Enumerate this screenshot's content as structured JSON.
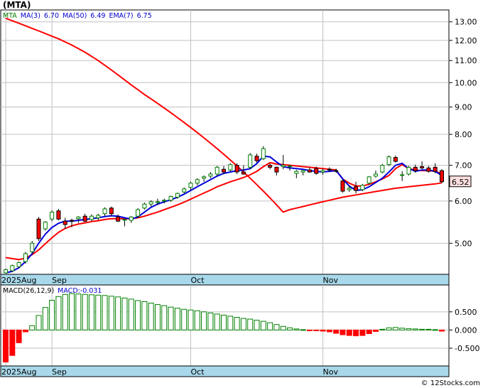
{
  "header": {
    "ticker": "(MTA)",
    "legend": [
      {
        "label": "MTA",
        "color": "#008000"
      },
      {
        "label": "MA(3)",
        "color": "#0000cc"
      },
      {
        "label": "6.70",
        "color": "#0000cc"
      },
      {
        "label": "MA(50)",
        "color": "#0000cc"
      },
      {
        "label": "6.49",
        "color": "#0000cc"
      },
      {
        "label": "EMA(7)",
        "color": "#0000cc"
      },
      {
        "label": "6.75",
        "color": "#0000cc"
      }
    ]
  },
  "macd_header": {
    "legend": [
      {
        "label": "MACD(26,12,9)",
        "color": "#000000"
      },
      {
        "label": "MACD:-0.031",
        "color": "#0000cc"
      }
    ]
  },
  "watermark": "© 12Stocks.com",
  "colors": {
    "up": "#008000",
    "down": "#ff0000",
    "ma_fast": "#0000dd",
    "ma_slow": "#ff0000",
    "band": "#a8d8ea",
    "grid": "#c0c0c0",
    "last_price_box": "#ffe0e0"
  },
  "chart_data": [
    {
      "type": "candlestick",
      "scale": "log",
      "ylim": [
        4.4,
        13.6
      ],
      "y_ticks": [
        5.0,
        6.0,
        7.0,
        8.0,
        9.0,
        10.0,
        11.0,
        12.0,
        13.0
      ],
      "y_tick_labels": [
        "5.00",
        "6.00",
        "7.00",
        "8.00",
        "9.00",
        "10.00",
        "11.00",
        "12.00",
        "13.00"
      ],
      "x_labels": [
        {
          "label": "2025Aug",
          "index": 0
        },
        {
          "label": "Sep",
          "index": 7
        },
        {
          "label": "Oct",
          "index": 28
        },
        {
          "label": "Nov",
          "index": 48
        }
      ],
      "last_price": 6.52,
      "last_price_label": "6.52",
      "ohlc": [
        [
          4.4,
          4.48,
          4.4,
          4.46
        ],
        [
          4.44,
          4.56,
          4.42,
          4.54
        ],
        [
          4.52,
          4.62,
          4.5,
          4.6
        ],
        [
          4.62,
          4.82,
          4.58,
          4.78
        ],
        [
          4.82,
          5.05,
          4.78,
          5.0
        ],
        [
          5.55,
          5.6,
          5.05,
          5.1
        ],
        [
          5.32,
          5.5,
          5.28,
          5.48
        ],
        [
          5.55,
          5.76,
          5.5,
          5.72
        ],
        [
          5.75,
          5.8,
          5.52,
          5.55
        ],
        [
          5.5,
          5.58,
          5.32,
          5.42
        ],
        [
          5.52,
          5.56,
          5.36,
          5.5
        ],
        [
          5.56,
          5.62,
          5.46,
          5.6
        ],
        [
          5.62,
          5.68,
          5.48,
          5.5
        ],
        [
          5.54,
          5.66,
          5.5,
          5.62
        ],
        [
          5.58,
          5.68,
          5.52,
          5.64
        ],
        [
          5.68,
          5.84,
          5.62,
          5.8
        ],
        [
          5.82,
          5.86,
          5.62,
          5.68
        ],
        [
          5.6,
          5.66,
          5.48,
          5.5
        ],
        [
          5.54,
          5.56,
          5.38,
          5.54
        ],
        [
          5.52,
          5.62,
          5.46,
          5.6
        ],
        [
          5.62,
          5.82,
          5.58,
          5.78
        ],
        [
          5.82,
          5.96,
          5.78,
          5.92
        ],
        [
          5.92,
          6.02,
          5.86,
          5.98
        ],
        [
          5.96,
          6.06,
          5.9,
          5.98
        ],
        [
          6.0,
          6.06,
          5.94,
          6.02
        ],
        [
          6.02,
          6.14,
          5.98,
          6.12
        ],
        [
          6.1,
          6.22,
          6.06,
          6.2
        ],
        [
          6.24,
          6.36,
          6.2,
          6.32
        ],
        [
          6.36,
          6.52,
          6.3,
          6.48
        ],
        [
          6.48,
          6.62,
          6.42,
          6.58
        ],
        [
          6.62,
          6.7,
          6.52,
          6.66
        ],
        [
          6.68,
          6.8,
          6.62,
          6.74
        ],
        [
          6.74,
          6.98,
          6.68,
          6.94
        ],
        [
          6.88,
          6.98,
          6.74,
          6.8
        ],
        [
          6.86,
          7.06,
          6.82,
          7.02
        ],
        [
          7.0,
          7.06,
          6.74,
          6.8
        ],
        [
          6.8,
          7.0,
          6.72,
          6.74
        ],
        [
          6.94,
          7.38,
          6.88,
          7.32
        ],
        [
          7.28,
          7.36,
          7.08,
          7.14
        ],
        [
          7.2,
          7.6,
          7.16,
          7.52
        ],
        [
          7.0,
          7.06,
          6.88,
          6.94
        ],
        [
          6.94,
          6.96,
          6.7,
          6.8
        ],
        [
          6.96,
          7.32,
          6.88,
          7.0
        ],
        [
          6.98,
          7.02,
          6.84,
          6.98
        ],
        [
          6.76,
          6.86,
          6.62,
          6.82
        ],
        [
          6.8,
          6.86,
          6.7,
          6.84
        ],
        [
          6.86,
          6.94,
          6.78,
          6.8
        ],
        [
          6.9,
          6.96,
          6.72,
          6.76
        ],
        [
          6.8,
          6.9,
          6.72,
          6.84
        ],
        [
          6.88,
          6.94,
          6.8,
          6.86
        ],
        [
          6.84,
          6.9,
          6.78,
          6.82
        ],
        [
          6.54,
          6.6,
          6.22,
          6.26
        ],
        [
          6.3,
          6.42,
          6.24,
          6.34
        ],
        [
          6.38,
          6.52,
          6.2,
          6.28
        ],
        [
          6.3,
          6.46,
          6.26,
          6.42
        ],
        [
          6.48,
          6.68,
          6.44,
          6.66
        ],
        [
          6.68,
          6.84,
          6.64,
          6.74
        ],
        [
          6.8,
          7.04,
          6.76,
          7.0
        ],
        [
          7.02,
          7.3,
          6.98,
          7.26
        ],
        [
          7.24,
          7.3,
          7.08,
          7.12
        ],
        [
          6.7,
          6.82,
          6.54,
          6.72
        ],
        [
          6.74,
          6.98,
          6.7,
          6.94
        ],
        [
          6.94,
          7.02,
          6.78,
          6.84
        ],
        [
          6.96,
          7.12,
          6.88,
          6.92
        ],
        [
          6.92,
          6.98,
          6.78,
          6.82
        ],
        [
          6.94,
          7.06,
          6.76,
          6.82
        ],
        [
          6.84,
          6.88,
          6.48,
          6.52
        ]
      ],
      "series": [
        {
          "name": "MA(50)",
          "color": "#ff0000",
          "values": [
            13.2,
            13.06,
            12.92,
            12.78,
            12.64,
            12.5,
            12.36,
            12.22,
            12.08,
            11.92,
            11.76,
            11.58,
            11.4,
            11.2,
            11.0,
            10.78,
            10.56,
            10.34,
            10.12,
            9.9,
            9.7,
            9.5,
            9.32,
            9.14,
            8.96,
            8.78,
            8.6,
            8.42,
            8.24,
            8.06,
            7.88,
            7.7,
            7.52,
            7.34,
            7.16,
            6.98,
            6.8,
            6.62,
            6.44,
            6.26,
            6.08,
            5.9,
            5.72,
            5.78,
            5.82,
            5.86,
            5.9,
            5.94,
            5.98,
            6.02,
            6.06,
            6.1,
            6.13,
            6.16,
            6.19,
            6.22,
            6.25,
            6.28,
            6.31,
            6.34,
            6.36,
            6.38,
            6.4,
            6.42,
            6.44,
            6.46,
            6.49
          ]
        },
        {
          "name": "EMA(7)",
          "color": "#ff0000",
          "values": [
            4.7,
            4.68,
            4.66,
            4.69,
            4.76,
            4.86,
            4.99,
            5.12,
            5.24,
            5.33,
            5.39,
            5.43,
            5.46,
            5.49,
            5.51,
            5.54,
            5.56,
            5.56,
            5.56,
            5.56,
            5.58,
            5.62,
            5.67,
            5.72,
            5.78,
            5.84,
            5.9,
            5.97,
            6.05,
            6.13,
            6.21,
            6.29,
            6.38,
            6.45,
            6.52,
            6.58,
            6.64,
            6.72,
            6.82,
            6.96,
            7.08,
            7.04,
            7.02,
            7.0,
            6.98,
            6.96,
            6.94,
            6.92,
            6.9,
            6.88,
            6.86,
            6.6,
            6.48,
            6.4,
            6.4,
            6.45,
            6.52,
            6.6,
            6.7,
            6.9,
            7.02,
            6.9,
            6.86,
            6.84,
            6.84,
            6.82,
            6.75
          ]
        },
        {
          "name": "MA(3)",
          "color": "#0000dd",
          "values": [
            4.4,
            4.43,
            4.5,
            4.62,
            4.78,
            5.0,
            5.2,
            5.35,
            5.45,
            5.5,
            5.5,
            5.52,
            5.54,
            5.56,
            5.58,
            5.61,
            5.63,
            5.62,
            5.58,
            5.55,
            5.6,
            5.72,
            5.84,
            5.92,
            5.98,
            6.03,
            6.1,
            6.18,
            6.28,
            6.38,
            6.48,
            6.58,
            6.68,
            6.76,
            6.8,
            6.84,
            6.86,
            6.9,
            7.05,
            7.28,
            7.26,
            7.1,
            6.96,
            6.92,
            6.9,
            6.88,
            6.84,
            6.82,
            6.8,
            6.82,
            6.84,
            6.6,
            6.4,
            6.28,
            6.3,
            6.38,
            6.5,
            6.62,
            6.8,
            7.0,
            7.06,
            6.9,
            6.82,
            6.86,
            6.86,
            6.82,
            6.7
          ]
        }
      ]
    },
    {
      "type": "histogram",
      "name": "MACD",
      "ylim": [
        -0.95,
        1.2
      ],
      "y_ticks": [
        0.5,
        0.0,
        -0.5
      ],
      "y_tick_labels": [
        "0.500",
        "0.000",
        "-0.500"
      ],
      "x_labels": [
        {
          "label": "2025Aug",
          "index": 0
        },
        {
          "label": "Sep",
          "index": 7
        },
        {
          "label": "Oct",
          "index": 28
        },
        {
          "label": "Nov",
          "index": 48
        }
      ],
      "values": [
        -0.88,
        -0.7,
        -0.35,
        -0.05,
        0.12,
        0.4,
        0.62,
        0.82,
        0.92,
        0.98,
        1.0,
        0.99,
        0.98,
        0.97,
        0.96,
        0.95,
        0.93,
        0.91,
        0.88,
        0.85,
        0.81,
        0.78,
        0.74,
        0.7,
        0.67,
        0.63,
        0.6,
        0.57,
        0.55,
        0.53,
        0.5,
        0.47,
        0.44,
        0.41,
        0.38,
        0.35,
        0.32,
        0.3,
        0.27,
        0.24,
        0.2,
        0.15,
        0.1,
        0.06,
        0.03,
        0.01,
        -0.01,
        -0.02,
        -0.03,
        -0.05,
        -0.09,
        -0.13,
        -0.15,
        -0.16,
        -0.15,
        -0.1,
        -0.04,
        0.02,
        0.06,
        0.07,
        0.05,
        0.04,
        0.03,
        0.02,
        0.02,
        0.01,
        -0.031
      ]
    }
  ]
}
